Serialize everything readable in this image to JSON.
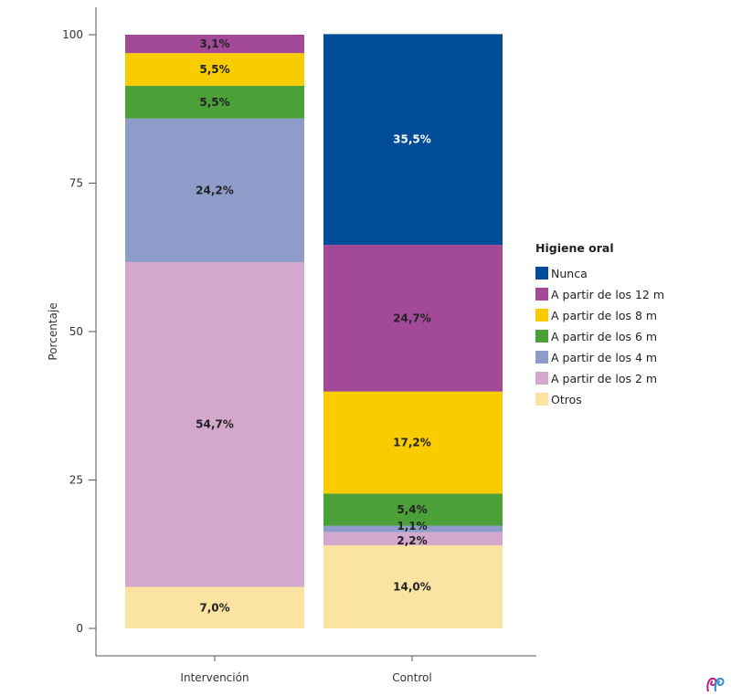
{
  "chart_data": {
    "type": "bar",
    "stacked": true,
    "ylabel": "Porcentaje",
    "xlabel": "",
    "ylim": [
      0,
      100
    ],
    "yticks": [
      0,
      25,
      50,
      75,
      100
    ],
    "categories": [
      "Intervención",
      "Control"
    ],
    "legend": {
      "title": "Higiene oral",
      "placement": "right"
    },
    "series": [
      {
        "name": "Otros",
        "color": "#fbe3a1",
        "values": [
          7.0,
          14.0
        ],
        "labels": [
          "7,0%",
          "14,0%"
        ]
      },
      {
        "name": "A partir de los 2 m",
        "color": "#d4a7cc",
        "values": [
          54.7,
          2.2
        ],
        "labels": [
          "54,7%",
          "2,2%"
        ]
      },
      {
        "name": "A partir de los 4 m",
        "color": "#8e9cc9",
        "values": [
          24.2,
          1.1
        ],
        "labels": [
          "24,2%",
          "1,1%"
        ]
      },
      {
        "name": "A partir de los 6 m",
        "color": "#4ca038",
        "values": [
          5.5,
          5.4
        ],
        "labels": [
          "5,5%",
          "5,4%"
        ]
      },
      {
        "name": "A partir de los 8 m",
        "color": "#f9cc00",
        "values": [
          5.5,
          17.2
        ],
        "labels": [
          "5,5%",
          "17,2%"
        ]
      },
      {
        "name": "A partir de los 12 m",
        "color": "#a24a97",
        "values": [
          3.1,
          24.7
        ],
        "labels": [
          "3,1%",
          "24,7%"
        ]
      },
      {
        "name": "Nunca",
        "color": "#004c99",
        "values": [
          0,
          35.5
        ],
        "labels": [
          "",
          "35,5%"
        ]
      }
    ],
    "legend_order": [
      "Nunca",
      "A partir de los 12 m",
      "A partir de los 8 m",
      "A partir de los 6 m",
      "A partir de los 4 m",
      "A partir de los 2 m",
      "Otros"
    ],
    "grid": false
  },
  "logo": {
    "name": "logo-icon"
  }
}
